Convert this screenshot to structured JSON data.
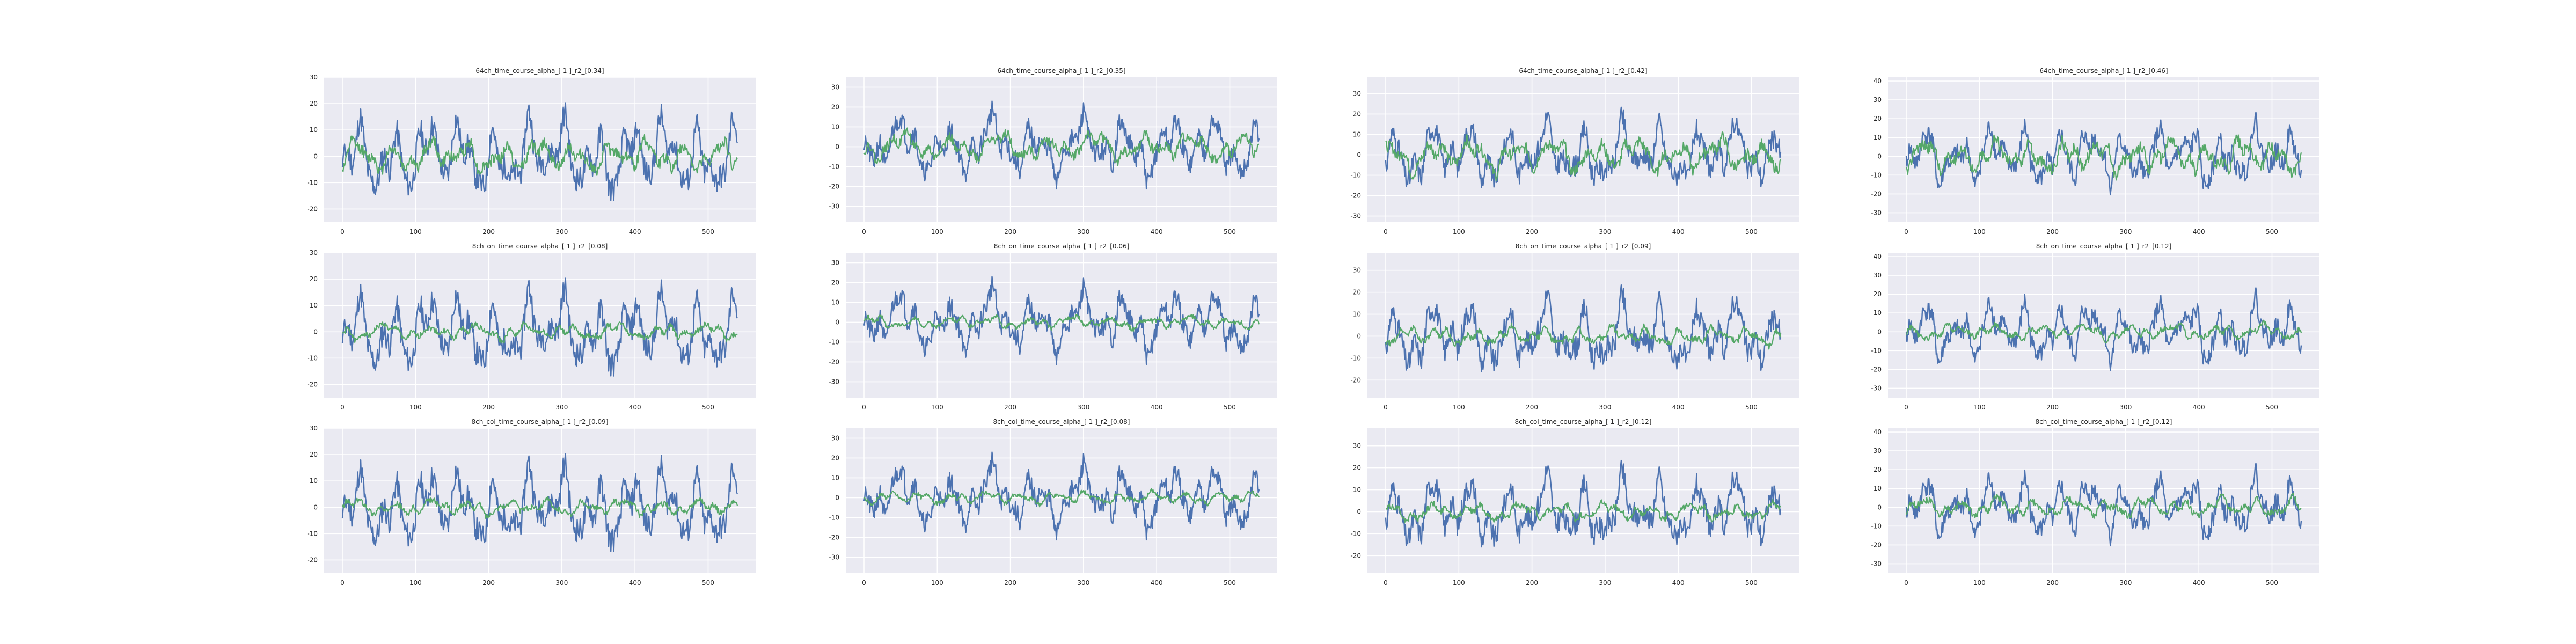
{
  "figure": {
    "background": "#ffffff",
    "panel_background": "#EAEAF2",
    "grid_color": "#ffffff"
  },
  "chart_data": [
    {
      "type": "line",
      "title": "64ch_time_course_alpha_[ 1 ]_r2_[0.34]",
      "xlim": [
        0,
        540
      ],
      "ylim": [
        -25,
        30
      ],
      "yticks": [
        -20,
        -10,
        0,
        10,
        20,
        30
      ],
      "xticks": [
        0,
        100,
        200,
        300,
        400,
        500
      ],
      "grid": true,
      "series": [
        {
          "color": "#4C72B0",
          "amplitude": 14,
          "seed": 11
        },
        {
          "color": "#55A868",
          "amplitude": 6,
          "seed": 12
        }
      ]
    },
    {
      "type": "line",
      "title": "64ch_time_course_alpha_[ 1 ]_r2_[0.35]",
      "xlim": [
        0,
        540
      ],
      "ylim": [
        -38,
        35
      ],
      "yticks": [
        -30,
        -20,
        -10,
        0,
        10,
        20,
        30
      ],
      "xticks": [
        0,
        100,
        200,
        300,
        400,
        500
      ],
      "grid": true,
      "series": [
        {
          "color": "#4C72B0",
          "amplitude": 15,
          "seed": 21
        },
        {
          "color": "#55A868",
          "amplitude": 7,
          "seed": 22
        }
      ]
    },
    {
      "type": "line",
      "title": "64ch_time_course_alpha_[ 1 ]_r2_[0.42]",
      "xlim": [
        0,
        540
      ],
      "ylim": [
        -33,
        38
      ],
      "yticks": [
        -30,
        -20,
        -10,
        0,
        10,
        20,
        30
      ],
      "xticks": [
        0,
        100,
        200,
        300,
        400,
        500
      ],
      "grid": true,
      "series": [
        {
          "color": "#4C72B0",
          "amplitude": 15,
          "seed": 31
        },
        {
          "color": "#55A868",
          "amplitude": 8,
          "seed": 32
        }
      ]
    },
    {
      "type": "line",
      "title": "64ch_time_course_alpha_[ 1 ]_r2_[0.46]",
      "xlim": [
        0,
        540
      ],
      "ylim": [
        -35,
        42
      ],
      "yticks": [
        -30,
        -20,
        -10,
        0,
        10,
        20,
        30,
        40
      ],
      "xticks": [
        0,
        100,
        200,
        300,
        400,
        500
      ],
      "grid": true,
      "series": [
        {
          "color": "#4C72B0",
          "amplitude": 15,
          "seed": 41
        },
        {
          "color": "#55A868",
          "amplitude": 9,
          "seed": 42
        }
      ]
    },
    {
      "type": "line",
      "title": "8ch_on_time_course_alpha_[ 1 ]_r2_[0.08]",
      "xlim": [
        0,
        540
      ],
      "ylim": [
        -25,
        30
      ],
      "yticks": [
        -20,
        -10,
        0,
        10,
        20,
        30
      ],
      "xticks": [
        0,
        100,
        200,
        300,
        400,
        500
      ],
      "grid": true,
      "series": [
        {
          "color": "#4C72B0",
          "amplitude": 14,
          "seed": 11
        },
        {
          "color": "#55A868",
          "amplitude": 3,
          "seed": 52
        }
      ]
    },
    {
      "type": "line",
      "title": "8ch_on_time_course_alpha_[ 1 ]_r2_[0.06]",
      "xlim": [
        0,
        540
      ],
      "ylim": [
        -38,
        35
      ],
      "yticks": [
        -30,
        -20,
        -10,
        0,
        10,
        20,
        30
      ],
      "xticks": [
        0,
        100,
        200,
        300,
        400,
        500
      ],
      "grid": true,
      "series": [
        {
          "color": "#4C72B0",
          "amplitude": 15,
          "seed": 21
        },
        {
          "color": "#55A868",
          "amplitude": 3,
          "seed": 62
        }
      ]
    },
    {
      "type": "line",
      "title": "8ch_on_time_course_alpha_[ 1 ]_r2_[0.09]",
      "xlim": [
        0,
        540
      ],
      "ylim": [
        -28,
        38
      ],
      "yticks": [
        -20,
        -10,
        0,
        10,
        20,
        30
      ],
      "xticks": [
        0,
        100,
        200,
        300,
        400,
        500
      ],
      "grid": true,
      "series": [
        {
          "color": "#4C72B0",
          "amplitude": 15,
          "seed": 31
        },
        {
          "color": "#55A868",
          "amplitude": 4,
          "seed": 72
        }
      ]
    },
    {
      "type": "line",
      "title": "8ch_on_time_course_alpha_[ 1 ]_r2_[0.12]",
      "xlim": [
        0,
        540
      ],
      "ylim": [
        -35,
        42
      ],
      "yticks": [
        -30,
        -20,
        -10,
        0,
        10,
        20,
        30,
        40
      ],
      "xticks": [
        0,
        100,
        200,
        300,
        400,
        500
      ],
      "grid": true,
      "series": [
        {
          "color": "#4C72B0",
          "amplitude": 15,
          "seed": 41
        },
        {
          "color": "#55A868",
          "amplitude": 4,
          "seed": 82
        }
      ]
    },
    {
      "type": "line",
      "title": "8ch_col_time_course_alpha_[ 1 ]_r2_[0.09]",
      "xlim": [
        0,
        540
      ],
      "ylim": [
        -25,
        30
      ],
      "yticks": [
        -20,
        -10,
        0,
        10,
        20,
        30
      ],
      "xticks": [
        0,
        100,
        200,
        300,
        400,
        500
      ],
      "grid": true,
      "series": [
        {
          "color": "#4C72B0",
          "amplitude": 14,
          "seed": 11
        },
        {
          "color": "#55A868",
          "amplitude": 3,
          "seed": 92
        }
      ]
    },
    {
      "type": "line",
      "title": "8ch_col_time_course_alpha_[ 1 ]_r2_[0.08]",
      "xlim": [
        0,
        540
      ],
      "ylim": [
        -38,
        35
      ],
      "yticks": [
        -30,
        -20,
        -10,
        0,
        10,
        20,
        30
      ],
      "xticks": [
        0,
        100,
        200,
        300,
        400,
        500
      ],
      "grid": true,
      "series": [
        {
          "color": "#4C72B0",
          "amplitude": 15,
          "seed": 21
        },
        {
          "color": "#55A868",
          "amplitude": 3,
          "seed": 102
        }
      ]
    },
    {
      "type": "line",
      "title": "8ch_col_time_course_alpha_[ 1 ]_r2_[0.12]",
      "xlim": [
        0,
        540
      ],
      "ylim": [
        -28,
        38
      ],
      "yticks": [
        -20,
        -10,
        0,
        10,
        20,
        30
      ],
      "xticks": [
        0,
        100,
        200,
        300,
        400,
        500
      ],
      "grid": true,
      "series": [
        {
          "color": "#4C72B0",
          "amplitude": 15,
          "seed": 31
        },
        {
          "color": "#55A868",
          "amplitude": 4,
          "seed": 112
        }
      ]
    },
    {
      "type": "line",
      "title": "8ch_col_time_course_alpha_[ 1 ]_r2_[0.12]",
      "xlim": [
        0,
        540
      ],
      "ylim": [
        -35,
        42
      ],
      "yticks": [
        -30,
        -20,
        -10,
        0,
        10,
        20,
        30,
        40
      ],
      "xticks": [
        0,
        100,
        200,
        300,
        400,
        500
      ],
      "grid": true,
      "series": [
        {
          "color": "#4C72B0",
          "amplitude": 15,
          "seed": 41
        },
        {
          "color": "#55A868",
          "amplitude": 5,
          "seed": 122
        }
      ]
    }
  ]
}
